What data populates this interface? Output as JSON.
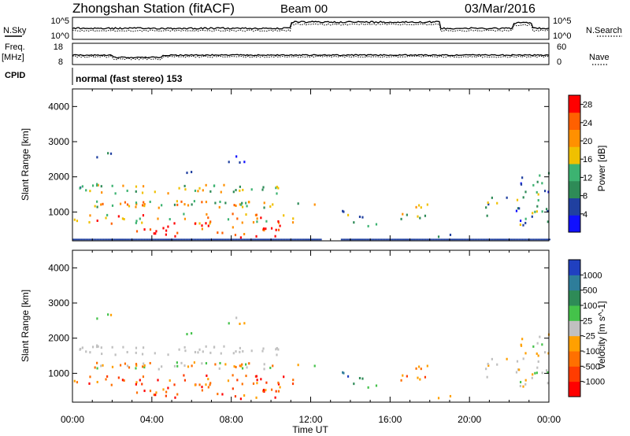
{
  "header": {
    "station": "Zhongshan Station (fitACF)",
    "beam": "Beam 00",
    "date": "03/Mar/2016"
  },
  "panels": {
    "nsky_label": "N.Sky",
    "nsearch_label": "N.Search",
    "nsky_ticks": [
      "10^5",
      "10^0"
    ],
    "nsearch_ticks": [
      "10^5",
      "10^0"
    ],
    "freq_label": "Freq.",
    "freq_unit": "[MHz]",
    "freq_ticks": [
      "18",
      "8"
    ],
    "nave_label": "Nave",
    "nave_ticks": [
      "60",
      "0"
    ],
    "cpid_label": "CPID",
    "cpid_text": "normal (fast stereo) 153"
  },
  "colors": {
    "power": [
      "#1010ff",
      "#2040a0",
      "#2e8b57",
      "#3cb371",
      "#f0c000",
      "#ff9000",
      "#ff6000",
      "#ff0000"
    ],
    "velocity": [
      "#2040c0",
      "#2e7d9a",
      "#2e8b57",
      "#44c24a",
      "#c0c0c0",
      "#ffa000",
      "#ff7000",
      "#ff3c00",
      "#ff0000"
    ]
  },
  "chart_data": [
    {
      "type": "heatmap",
      "name": "Power",
      "xlabel": "",
      "ylabel": "Slant Range [km]",
      "xlim": [
        "00:00",
        "24:00"
      ],
      "ylim": [
        180,
        4500
      ],
      "y_ticks": [
        "1000",
        "2000",
        "3000",
        "4000"
      ],
      "colorbar_label": "Power [dB]",
      "colorbar_ticks": [
        "4",
        "8",
        "12",
        "16",
        "20",
        "24",
        "28"
      ],
      "colorbar_range": [
        0,
        30
      ]
    },
    {
      "type": "heatmap",
      "name": "Velocity",
      "xlabel": "Time UT",
      "ylabel": "Slant Range [km]",
      "x_ticks": [
        "00:00",
        "04:00",
        "08:00",
        "12:00",
        "16:00",
        "20:00",
        "00:00"
      ],
      "xlim": [
        "00:00",
        "24:00"
      ],
      "ylim": [
        180,
        4500
      ],
      "y_ticks": [
        "1000",
        "2000",
        "3000",
        "4000"
      ],
      "colorbar_label": "Velocity [m s^-1]",
      "colorbar_ticks": [
        "1000",
        "500",
        "100",
        "25",
        "-25",
        "-100",
        "-500",
        "-1000"
      ]
    }
  ]
}
